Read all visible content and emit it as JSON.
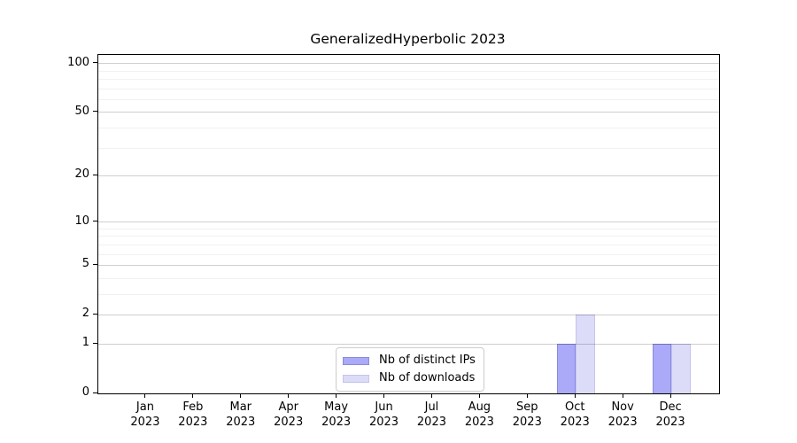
{
  "figure": {
    "background": "#ffffff"
  },
  "chart_data": {
    "type": "bar",
    "title": "GeneralizedHyperbolic 2023",
    "categories": [
      "Jan",
      "Feb",
      "Mar",
      "Apr",
      "May",
      "Jun",
      "Jul",
      "Aug",
      "Sep",
      "Oct",
      "Nov",
      "Dec"
    ],
    "category_year": "2023",
    "series": [
      {
        "name": "Nb of distinct IPs",
        "color": "#aaaaf8",
        "edge_color": "#8a8ade",
        "values": [
          0,
          0,
          0,
          0,
          0,
          0,
          0,
          0,
          0,
          1,
          0,
          1
        ]
      },
      {
        "name": "Nb of downloads",
        "color": "#dcdcf8",
        "edge_color": "#c4c4ee",
        "values": [
          0,
          0,
          0,
          0,
          0,
          0,
          0,
          0,
          0,
          2,
          0,
          1
        ]
      }
    ],
    "xlabel": "",
    "ylabel": "",
    "yscale": "log1p",
    "ylim": [
      0,
      113
    ],
    "yticks": [
      0,
      1,
      2,
      5,
      10,
      20,
      50,
      100
    ],
    "minor_yticks": [
      3,
      4,
      6,
      7,
      8,
      9,
      30,
      40,
      60,
      70,
      80,
      90
    ],
    "grid": true,
    "grid_above_bars": true,
    "legend_position": "lower center",
    "axis_color": "#000000",
    "major_grid_color": "#cecece",
    "minor_grid_color": "#f0f0f0"
  }
}
